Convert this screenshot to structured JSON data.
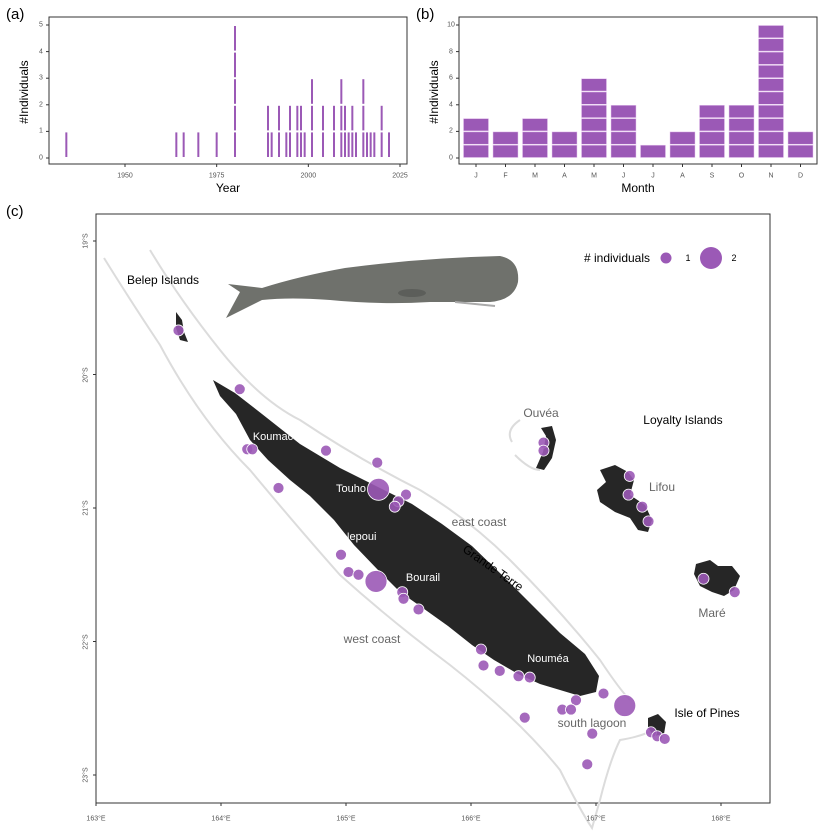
{
  "colors": {
    "accent": "#9b59b6",
    "land": "#262626",
    "reef": "#dcdcdc",
    "frame": "#333333"
  },
  "chart_data": [
    {
      "type": "bar",
      "panel": "(a)",
      "xlabel": "Year",
      "ylabel": "#Individuals",
      "xlim": [
        1930,
        2026
      ],
      "ylim": [
        0,
        5.2
      ],
      "xticks": [
        "1950",
        "1975",
        "2000",
        "2025"
      ],
      "yticks": [
        "0",
        "1",
        "2",
        "3",
        "4",
        "5"
      ],
      "x": [
        1934,
        1964,
        1966,
        1970,
        1975,
        1980,
        1989,
        1990,
        1992,
        1994,
        1995,
        1997,
        1998,
        1999,
        2001,
        2004,
        2007,
        2009,
        2010,
        2011,
        2012,
        2013,
        2015,
        2016,
        2017,
        2018,
        2020,
        2022
      ],
      "values": [
        1,
        1,
        1,
        1,
        1,
        5,
        2,
        1,
        2,
        1,
        2,
        2,
        2,
        1,
        3,
        2,
        2,
        3,
        2,
        1,
        2,
        1,
        3,
        1,
        1,
        1,
        2,
        1
      ]
    },
    {
      "type": "bar",
      "panel": "(b)",
      "xlabel": "Month",
      "ylabel": "#Individuals",
      "ylim": [
        0,
        10.3
      ],
      "yticks": [
        "0",
        "2",
        "4",
        "6",
        "8",
        "10"
      ],
      "categories": [
        "J",
        "F",
        "M",
        "A",
        "M",
        "J",
        "J",
        "A",
        "S",
        "O",
        "N",
        "D"
      ],
      "values": [
        3,
        2,
        3,
        2,
        6,
        4,
        1,
        2,
        4,
        4,
        10,
        2
      ]
    },
    {
      "type": "scatter",
      "panel": "(c)",
      "xlim": [
        163,
        168.4
      ],
      "ylim": [
        -19,
        -23.2
      ],
      "xticks": [
        "163°E",
        "164°E",
        "165°E",
        "166°E",
        "167°E",
        "168°E"
      ],
      "yticks": [
        "19°S",
        "20°S",
        "21°S",
        "22°S",
        "23°S"
      ],
      "legend": {
        "title": "# individuals",
        "items": [
          "1",
          "2"
        ],
        "placement": "top-right"
      },
      "labels": {
        "belep": "Belep Islands",
        "koumac": "Koumac",
        "touho": "Touho",
        "nepoui": "Nepoui",
        "bourail": "Bourail",
        "noumea": "Nouméa",
        "grande_terre": "Grande Terre",
        "east_coast": "east coast",
        "west_coast": "west coast",
        "south_lagoon": "south lagoon",
        "ouvea": "Ouvéa",
        "loyalty": "Loyalty Islands",
        "lifou": "Lifou",
        "mare": "Maré",
        "pines": "Isle of Pines"
      },
      "points": [
        {
          "lon": 163.66,
          "lat": -19.67,
          "n": 1
        },
        {
          "lon": 164.15,
          "lat": -20.11,
          "n": 1
        },
        {
          "lon": 164.21,
          "lat": -20.56,
          "n": 1
        },
        {
          "lon": 164.25,
          "lat": -20.56,
          "n": 1
        },
        {
          "lon": 164.84,
          "lat": -20.57,
          "n": 1
        },
        {
          "lon": 165.25,
          "lat": -20.66,
          "n": 1
        },
        {
          "lon": 165.26,
          "lat": -20.86,
          "n": 2
        },
        {
          "lon": 165.48,
          "lat": -20.9,
          "n": 1
        },
        {
          "lon": 165.42,
          "lat": -20.95,
          "n": 1
        },
        {
          "lon": 165.39,
          "lat": -20.99,
          "n": 1
        },
        {
          "lon": 164.46,
          "lat": -20.85,
          "n": 1
        },
        {
          "lon": 164.96,
          "lat": -21.35,
          "n": 1
        },
        {
          "lon": 165.02,
          "lat": -21.48,
          "n": 1
        },
        {
          "lon": 165.1,
          "lat": -21.5,
          "n": 1
        },
        {
          "lon": 165.24,
          "lat": -21.55,
          "n": 2
        },
        {
          "lon": 165.45,
          "lat": -21.63,
          "n": 1
        },
        {
          "lon": 165.46,
          "lat": -21.68,
          "n": 1
        },
        {
          "lon": 165.58,
          "lat": -21.76,
          "n": 1
        },
        {
          "lon": 166.08,
          "lat": -22.06,
          "n": 1
        },
        {
          "lon": 166.1,
          "lat": -22.18,
          "n": 1
        },
        {
          "lon": 166.23,
          "lat": -22.22,
          "n": 1
        },
        {
          "lon": 166.38,
          "lat": -22.26,
          "n": 1
        },
        {
          "lon": 166.47,
          "lat": -22.27,
          "n": 1
        },
        {
          "lon": 167.06,
          "lat": -22.39,
          "n": 1
        },
        {
          "lon": 166.84,
          "lat": -22.44,
          "n": 1
        },
        {
          "lon": 167.23,
          "lat": -22.48,
          "n": 2
        },
        {
          "lon": 166.73,
          "lat": -22.51,
          "n": 1
        },
        {
          "lon": 166.8,
          "lat": -22.51,
          "n": 1
        },
        {
          "lon": 166.43,
          "lat": -22.57,
          "n": 1
        },
        {
          "lon": 166.97,
          "lat": -22.69,
          "n": 1
        },
        {
          "lon": 167.44,
          "lat": -22.68,
          "n": 1
        },
        {
          "lon": 167.49,
          "lat": -22.71,
          "n": 1
        },
        {
          "lon": 167.55,
          "lat": -22.73,
          "n": 1
        },
        {
          "lon": 166.93,
          "lat": -22.92,
          "n": 1
        },
        {
          "lon": 166.58,
          "lat": -20.51,
          "n": 1
        },
        {
          "lon": 166.58,
          "lat": -20.57,
          "n": 1
        },
        {
          "lon": 167.27,
          "lat": -20.76,
          "n": 1
        },
        {
          "lon": 167.26,
          "lat": -20.9,
          "n": 1
        },
        {
          "lon": 167.37,
          "lat": -20.99,
          "n": 1
        },
        {
          "lon": 167.42,
          "lat": -21.1,
          "n": 1
        },
        {
          "lon": 167.86,
          "lat": -21.53,
          "n": 1
        },
        {
          "lon": 168.11,
          "lat": -21.63,
          "n": 1
        }
      ]
    }
  ]
}
